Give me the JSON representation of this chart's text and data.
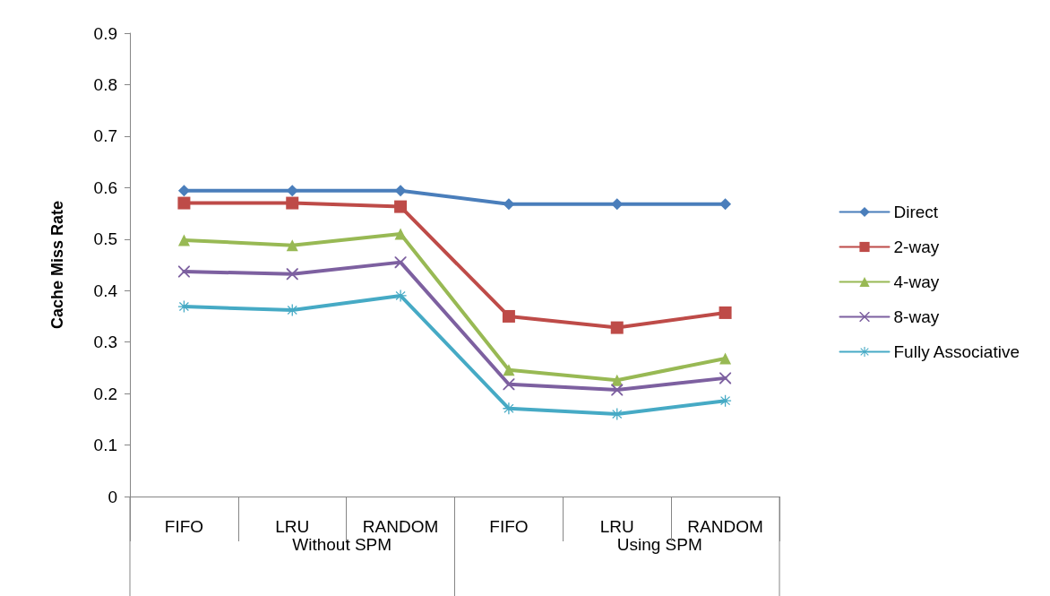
{
  "chart_data": {
    "type": "line",
    "ylabel": "Cache Miss Rate",
    "categories": [
      "FIFO",
      "LRU",
      "RANDOM",
      "FIFO",
      "LRU",
      "RANDOM"
    ],
    "annotations": [
      "Without SPM",
      "Using SPM"
    ],
    "ylim": [
      0,
      0.9
    ],
    "yticks": [
      0,
      0.1,
      0.2,
      0.3,
      0.4,
      0.5,
      0.6,
      0.7,
      0.8,
      0.9
    ],
    "grid": false,
    "legend": "right",
    "series": [
      {
        "name": "Direct",
        "color": "#4a7ebb",
        "marker": "diamond",
        "values": [
          0.594,
          0.594,
          0.594,
          0.568,
          0.568,
          0.568
        ]
      },
      {
        "name": "2-way",
        "color": "#be4b48",
        "marker": "square",
        "values": [
          0.57,
          0.57,
          0.563,
          0.35,
          0.328,
          0.357
        ]
      },
      {
        "name": "4-way",
        "color": "#98b954",
        "marker": "triangle",
        "values": [
          0.498,
          0.488,
          0.51,
          0.246,
          0.226,
          0.268
        ]
      },
      {
        "name": "8-way",
        "color": "#7d60a0",
        "marker": "cross",
        "values": [
          0.437,
          0.432,
          0.455,
          0.218,
          0.207,
          0.23
        ]
      },
      {
        "name": "Fully Associative",
        "color": "#46aac5",
        "marker": "star",
        "values": [
          0.369,
          0.362,
          0.39,
          0.171,
          0.16,
          0.186
        ]
      }
    ]
  }
}
